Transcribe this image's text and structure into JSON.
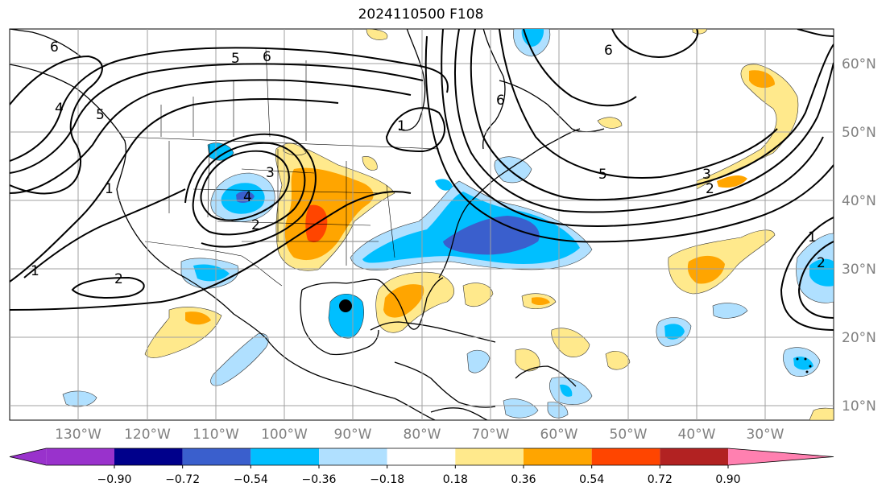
{
  "title": "2024110500 F108",
  "map": {
    "lat_labels": [
      "60°N",
      "50°N",
      "40°N",
      "30°N",
      "20°N",
      "10°N"
    ],
    "lon_labels": [
      "130°W",
      "120°W",
      "110°W",
      "100°W",
      "90°W",
      "80°W",
      "70°W",
      "60°W",
      "50°W",
      "40°W",
      "30°W"
    ],
    "contour_labels": [
      "6",
      "5",
      "6",
      "4",
      "5",
      "1",
      "6",
      "6",
      "5",
      "4",
      "3",
      "2",
      "1",
      "1",
      "3",
      "2",
      "2",
      "1",
      "2"
    ]
  },
  "colorbar": {
    "ticks": [
      "−0.90",
      "−0.72",
      "−0.54",
      "−0.36",
      "−0.18",
      "0.18",
      "0.36",
      "0.54",
      "0.72",
      "0.90"
    ],
    "colors": [
      "#9932cc",
      "#00008b",
      "#3a5fcd",
      "#00bfff",
      "#b0e0ff",
      "#ffffff",
      "#ffe98c",
      "#ffa500",
      "#ff4500",
      "#b22222",
      "#ff80b0"
    ]
  },
  "colors": {
    "land_outline": "#000000",
    "grid": "#a0a0a0",
    "axis_text": "#808080"
  }
}
